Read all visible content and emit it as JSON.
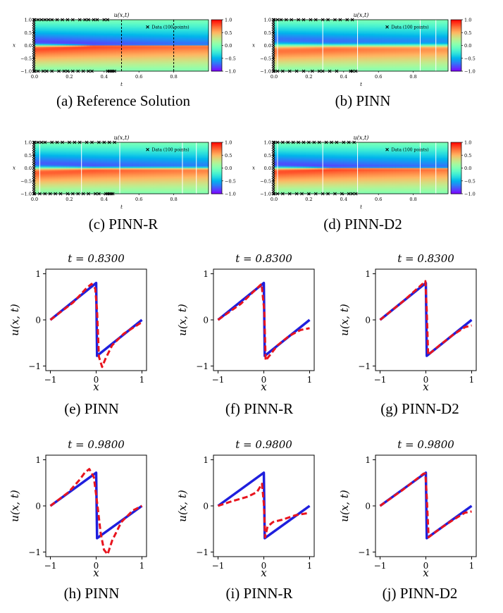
{
  "heatmap_common": {
    "title": "u(x,t)",
    "xlabel": "t",
    "ylabel": "x",
    "legend": "Data (100 points)",
    "xticks": [
      "0.0",
      "0.2",
      "0.4",
      "0.6",
      "0.8"
    ],
    "yticks": [
      "1.0",
      "0.5",
      "0.0",
      "−0.5",
      "−1.0"
    ],
    "cbar_ticks": [
      "1.0",
      "0.5",
      "0.0",
      "−0.5",
      "−1.0"
    ]
  },
  "captions": {
    "a": "(a)  Reference Solution",
    "b": "(b)  PINN",
    "c": "(c)  PINN-R",
    "d": "(d)  PINN-D2",
    "e": "(e)  PINN",
    "f": "(f)  PINN-R",
    "g": "(g)  PINN-D2",
    "h": "(h)  PINN",
    "i": "(i)  PINN-R",
    "j": "(j)  PINN-D2"
  },
  "line_common": {
    "xlabel": "x",
    "ylabel": "u(x, t)",
    "xticks": [
      "−1",
      "0",
      "1"
    ],
    "yticks": [
      "1",
      "0",
      "−1"
    ]
  },
  "colors": {
    "exact": "#1f1fdd",
    "prediction": "#e8141e",
    "data_marker": "#000000",
    "slice_line": "#ffffff"
  },
  "chart_data": [
    {
      "id": "a",
      "type": "heatmap",
      "title": "u(x,t)",
      "xlabel": "t",
      "ylabel": "x",
      "xlim": [
        0,
        1
      ],
      "ylim": [
        -1,
        1
      ],
      "clim": [
        -1,
        1
      ],
      "colormap": "rainbow",
      "legend": "Data (100 points)",
      "slice_style": "dashed-black",
      "slices_t": [
        0.5,
        0.8
      ],
      "shock_blur": 0.02,
      "data_points_x_at_t0": true,
      "data_t_top": [
        0.0,
        0.02,
        0.04,
        0.06,
        0.08,
        0.1,
        0.13,
        0.16,
        0.19,
        0.22,
        0.26,
        0.29,
        0.31,
        0.34,
        0.36,
        0.4,
        0.42
      ],
      "data_t_bottom": [
        0.0,
        0.02,
        0.05,
        0.07,
        0.1,
        0.14,
        0.17,
        0.19,
        0.22,
        0.25,
        0.28,
        0.31,
        0.33,
        0.42,
        0.43,
        0.44,
        0.45,
        0.46
      ]
    },
    {
      "id": "b",
      "type": "heatmap",
      "title": "u(x,t)",
      "xlabel": "t",
      "ylabel": "x",
      "xlim": [
        0,
        1
      ],
      "ylim": [
        -1,
        1
      ],
      "clim": [
        -1,
        1
      ],
      "colormap": "rainbow",
      "legend": "Data (100 points)",
      "slice_style": "solid-white",
      "slices_t": [
        0.02,
        0.28,
        0.48,
        0.84,
        0.93
      ],
      "shock_blur": 0.09,
      "data_points_x_at_t0": true,
      "data_t_top": [
        0.0,
        0.02,
        0.04,
        0.07,
        0.1,
        0.14,
        0.17,
        0.21,
        0.24,
        0.28,
        0.31,
        0.35,
        0.38,
        0.42,
        0.45
      ],
      "data_t_bottom": [
        0.0,
        0.02,
        0.05,
        0.09,
        0.13,
        0.17,
        0.22,
        0.26,
        0.28,
        0.32,
        0.36,
        0.44,
        0.45,
        0.47
      ]
    },
    {
      "id": "c",
      "type": "heatmap",
      "title": "u(x,t)",
      "xlabel": "t",
      "ylabel": "x",
      "xlim": [
        0,
        1
      ],
      "ylim": [
        -1,
        1
      ],
      "clim": [
        -1,
        1
      ],
      "colormap": "rainbow",
      "legend": "Data (100 points)",
      "slice_style": "solid-white",
      "slices_t": [
        0.03,
        0.27,
        0.49,
        0.85,
        0.93
      ],
      "shock_blur": 0.05,
      "data_points_x_at_t0": true,
      "data_t_top": [
        0.0,
        0.02,
        0.04,
        0.06,
        0.1,
        0.13,
        0.16,
        0.2,
        0.23,
        0.26,
        0.3,
        0.33,
        0.37,
        0.4,
        0.43,
        0.46
      ],
      "data_t_bottom": [
        0.0,
        0.03,
        0.06,
        0.09,
        0.12,
        0.15,
        0.19,
        0.22,
        0.25,
        0.28,
        0.31,
        0.35,
        0.37,
        0.41,
        0.42,
        0.43,
        0.44,
        0.45
      ]
    },
    {
      "id": "d",
      "type": "heatmap",
      "title": "u(x,t)",
      "xlabel": "t",
      "ylabel": "x",
      "xlim": [
        0,
        1
      ],
      "ylim": [
        -1,
        1
      ],
      "clim": [
        -1,
        1
      ],
      "colormap": "rainbow",
      "legend": "Data (100 points)",
      "slice_style": "solid-white",
      "slices_t": [
        0.02,
        0.28,
        0.48,
        0.84,
        0.93
      ],
      "shock_blur": 0.025,
      "data_points_x_at_t0": true,
      "data_t_top": [
        0.0,
        0.02,
        0.05,
        0.08,
        0.11,
        0.14,
        0.17,
        0.2,
        0.23,
        0.26,
        0.3,
        0.33,
        0.36,
        0.4,
        0.43,
        0.46
      ],
      "data_t_bottom": [
        0.0,
        0.02,
        0.05,
        0.09,
        0.13,
        0.16,
        0.2,
        0.24,
        0.28,
        0.31,
        0.35,
        0.39,
        0.43,
        0.45,
        0.47
      ]
    },
    {
      "id": "e",
      "type": "line",
      "title": "t = 0.8300",
      "xlabel": "x",
      "ylabel": "u(x, t)",
      "xlim": [
        -1.1,
        1.1
      ],
      "ylim": [
        -1.1,
        1.1
      ],
      "exact_x": [
        -1,
        0,
        0.02,
        1
      ],
      "exact_y": [
        0,
        0.8,
        -0.78,
        0
      ],
      "pred_x": [
        -1,
        -0.5,
        -0.2,
        -0.1,
        -0.02,
        0.02,
        0.06,
        0.13,
        0.2,
        0.35,
        0.6,
        1
      ],
      "pred_y": [
        0,
        0.38,
        0.7,
        0.78,
        0.68,
        0.2,
        -0.8,
        -1.02,
        -0.85,
        -0.55,
        -0.3,
        -0.05
      ]
    },
    {
      "id": "f",
      "type": "line",
      "title": "t = 0.8300",
      "xlabel": "x",
      "ylabel": "u(x, t)",
      "xlim": [
        -1.1,
        1.1
      ],
      "ylim": [
        -1.1,
        1.1
      ],
      "exact_x": [
        -1,
        0,
        0.02,
        1
      ],
      "exact_y": [
        0,
        0.8,
        -0.78,
        0
      ],
      "pred_x": [
        -1,
        -0.5,
        -0.05,
        0.01,
        0.04,
        0.12,
        0.3,
        0.55,
        0.8,
        1
      ],
      "pred_y": [
        0,
        0.35,
        0.78,
        0.2,
        -0.88,
        -0.78,
        -0.55,
        -0.35,
        -0.22,
        -0.18
      ]
    },
    {
      "id": "g",
      "type": "line",
      "title": "t = 0.8300",
      "xlabel": "x",
      "ylabel": "u(x, t)",
      "xlim": [
        -1.1,
        1.1
      ],
      "ylim": [
        -1.1,
        1.1
      ],
      "exact_x": [
        -1,
        0,
        0.02,
        1
      ],
      "exact_y": [
        0,
        0.8,
        -0.78,
        0
      ],
      "pred_x": [
        -1,
        -0.5,
        -0.05,
        -0.01,
        0.02,
        0.05,
        0.3,
        0.6,
        0.85,
        1
      ],
      "pred_y": [
        0,
        0.4,
        0.8,
        0.84,
        0.2,
        -0.76,
        -0.55,
        -0.32,
        -0.16,
        -0.12
      ]
    },
    {
      "id": "h",
      "type": "line",
      "title": "t = 0.9800",
      "xlabel": "x",
      "ylabel": "u(x, t)",
      "xlim": [
        -1.1,
        1.1
      ],
      "ylim": [
        -1.1,
        1.1
      ],
      "exact_x": [
        -1,
        0,
        0.02,
        1
      ],
      "exact_y": [
        0,
        0.72,
        -0.7,
        0
      ],
      "pred_x": [
        -1,
        -0.6,
        -0.35,
        -0.25,
        -0.15,
        -0.05,
        0.03,
        0.1,
        0.17,
        0.25,
        0.35,
        0.55,
        0.8,
        1
      ],
      "pred_y": [
        0,
        0.3,
        0.58,
        0.72,
        0.8,
        0.62,
        0.0,
        -0.6,
        -0.95,
        -1.05,
        -0.75,
        -0.35,
        -0.1,
        0
      ]
    },
    {
      "id": "i",
      "type": "line",
      "title": "t = 0.9800",
      "xlabel": "x",
      "ylabel": "u(x, t)",
      "xlim": [
        -1.1,
        1.1
      ],
      "ylim": [
        -1.1,
        1.1
      ],
      "exact_x": [
        -1,
        0,
        0.02,
        1
      ],
      "exact_y": [
        0,
        0.72,
        -0.7,
        0
      ],
      "pred_x": [
        -1,
        -0.7,
        -0.35,
        -0.15,
        -0.04,
        0.0,
        0.03,
        0.08,
        0.2,
        0.4,
        0.7,
        1
      ],
      "pred_y": [
        0,
        0.1,
        0.2,
        0.3,
        0.48,
        0.05,
        -0.68,
        -0.45,
        -0.35,
        -0.3,
        -0.2,
        -0.15
      ]
    },
    {
      "id": "j",
      "type": "line",
      "title": "t = 0.9800",
      "xlabel": "x",
      "ylabel": "u(x, t)",
      "xlim": [
        -1.1,
        1.1
      ],
      "ylim": [
        -1.1,
        1.1
      ],
      "exact_x": [
        -1,
        0,
        0.02,
        1
      ],
      "exact_y": [
        0,
        0.72,
        -0.7,
        0
      ],
      "pred_x": [
        -1,
        -0.5,
        -0.05,
        -0.01,
        0.02,
        0.06,
        0.3,
        0.6,
        0.85,
        1
      ],
      "pred_y": [
        0,
        0.35,
        0.7,
        0.7,
        0.2,
        -0.68,
        -0.5,
        -0.3,
        -0.15,
        -0.12
      ]
    }
  ]
}
